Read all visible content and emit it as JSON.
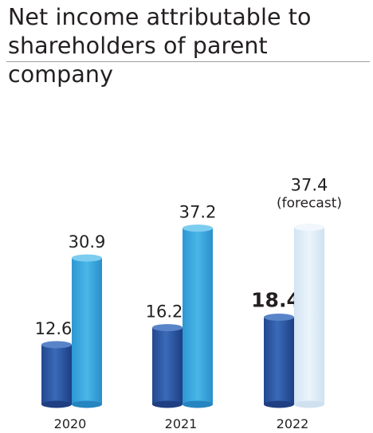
{
  "title_line1": "Net income attributable to",
  "title_line2": "shareholders of parent company",
  "chart_data": {
    "type": "bar",
    "title": "Net income attributable to shareholders of parent company",
    "categories": [
      "2020",
      "2021",
      "2022"
    ],
    "series": [
      {
        "values": [
          12.6,
          16.2,
          18.4
        ],
        "value_labels": [
          "12.6",
          "16.2",
          "18.4"
        ],
        "color": "#2e5aa8",
        "highlight": [
          false,
          false,
          true
        ],
        "highlight_color": "#1f56a8"
      },
      {
        "values": [
          30.9,
          37.2,
          37.4
        ],
        "value_labels": [
          "30.9",
          "37.2",
          "37.4"
        ],
        "color": "#36a6dc",
        "forecast": [
          false,
          false,
          true
        ],
        "forecast_color": "#dbeaf6"
      }
    ],
    "annotations": [
      {
        "category": "2022",
        "series": 1,
        "text": "(forecast)"
      }
    ],
    "xlabel": "",
    "ylabel": "",
    "ylim": [
      0,
      40
    ],
    "grid": false,
    "legend": "none"
  }
}
